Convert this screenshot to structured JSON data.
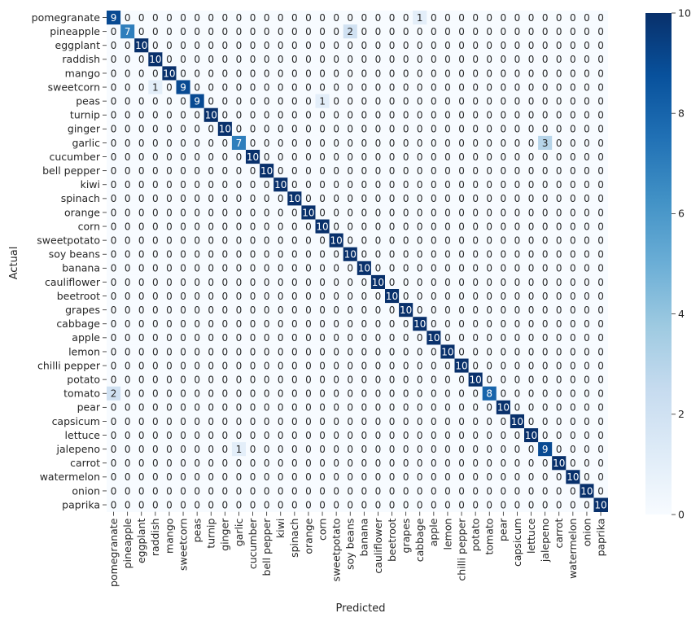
{
  "chart_data": {
    "type": "heatmap",
    "xlabel": "Predicted",
    "ylabel": "Actual",
    "labels": [
      "pomegranate",
      "pineapple",
      "eggplant",
      "raddish",
      "mango",
      "sweetcorn",
      "peas",
      "turnip",
      "ginger",
      "garlic",
      "cucumber",
      "bell pepper",
      "kiwi",
      "spinach",
      "orange",
      "corn",
      "sweetpotato",
      "soy beans",
      "banana",
      "cauliflower",
      "beetroot",
      "grapes",
      "cabbage",
      "apple",
      "lemon",
      "chilli pepper",
      "potato",
      "tomato",
      "pear",
      "capsicum",
      "lettuce",
      "jalepeno",
      "carrot",
      "watermelon",
      "onion",
      "paprika"
    ],
    "off_diagonal": [
      {
        "row": 0,
        "col": 22,
        "value": 1
      },
      {
        "row": 1,
        "col": 17,
        "value": 2
      },
      {
        "row": 5,
        "col": 3,
        "value": 1
      },
      {
        "row": 6,
        "col": 15,
        "value": 1
      },
      {
        "row": 9,
        "col": 31,
        "value": 3
      },
      {
        "row": 27,
        "col": 0,
        "value": 2
      },
      {
        "row": 31,
        "col": 9,
        "value": 1
      }
    ],
    "diagonal": [
      9,
      7,
      10,
      10,
      10,
      9,
      9,
      10,
      10,
      7,
      10,
      10,
      10,
      10,
      10,
      10,
      10,
      10,
      10,
      10,
      10,
      10,
      10,
      10,
      10,
      10,
      10,
      8,
      10,
      10,
      10,
      9,
      10,
      10,
      10,
      10
    ],
    "vmin": 0,
    "vmax": 10,
    "colorbar_ticks": [
      0,
      2,
      4,
      6,
      8,
      10
    ],
    "colormap": [
      "#f7fbff",
      "#deebf7",
      "#c6dbef",
      "#9ecae1",
      "#6baed6",
      "#4292c6",
      "#2171b5",
      "#08519c",
      "#08306b"
    ]
  }
}
